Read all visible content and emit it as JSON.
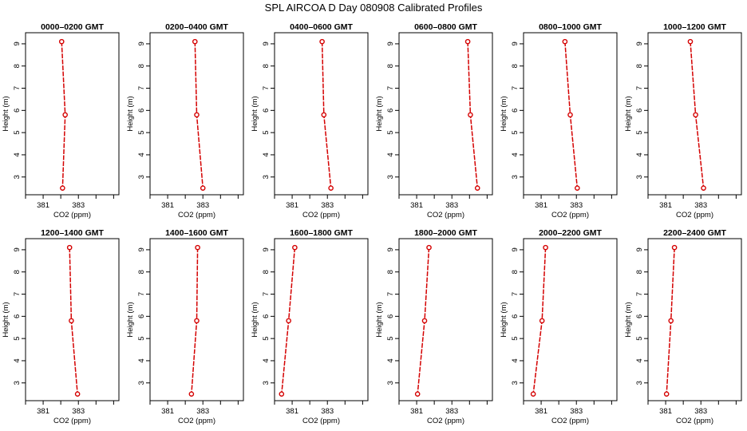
{
  "main_title": "SPL AIRCOA D  Day 080908  Calibrated Profiles",
  "chart_data": [
    {
      "type": "line",
      "title": "0000–0200 GMT",
      "xlabel": "CO2 (ppm)",
      "ylabel": "Height (m)",
      "xticks": [
        "381",
        "383"
      ],
      "yticks": [
        "3",
        "4",
        "5",
        "6",
        "7",
        "8",
        "9"
      ],
      "xlim": [
        380.0,
        385.3
      ],
      "ylim": [
        2.2,
        9.5
      ],
      "series": [
        {
          "x": [
            382.05,
            382.25,
            382.1
          ],
          "y": [
            9.1,
            5.8,
            2.5
          ]
        }
      ],
      "color": "#d40000",
      "grid": false
    },
    {
      "type": "line",
      "title": "0200–0400 GMT",
      "xlabel": "CO2 (ppm)",
      "ylabel": "Height (m)",
      "xticks": [
        "381",
        "383"
      ],
      "yticks": [
        "3",
        "4",
        "5",
        "6",
        "7",
        "8",
        "9"
      ],
      "xlim": [
        380.0,
        385.3
      ],
      "ylim": [
        2.2,
        9.5
      ],
      "series": [
        {
          "x": [
            382.55,
            382.65,
            383.0
          ],
          "y": [
            9.1,
            5.8,
            2.5
          ]
        }
      ],
      "color": "#d40000",
      "grid": false
    },
    {
      "type": "line",
      "title": "0400–0600 GMT",
      "xlabel": "CO2 (ppm)",
      "ylabel": "Height (m)",
      "xticks": [
        "381",
        "383"
      ],
      "yticks": [
        "3",
        "4",
        "5",
        "6",
        "7",
        "8",
        "9"
      ],
      "xlim": [
        380.0,
        385.3
      ],
      "ylim": [
        2.2,
        9.5
      ],
      "series": [
        {
          "x": [
            382.7,
            382.8,
            383.2
          ],
          "y": [
            9.1,
            5.8,
            2.5
          ]
        }
      ],
      "color": "#d40000",
      "grid": false
    },
    {
      "type": "line",
      "title": "0600–0800 GMT",
      "xlabel": "CO2 (ppm)",
      "ylabel": "Height (m)",
      "xticks": [
        "381",
        "383"
      ],
      "yticks": [
        "3",
        "4",
        "5",
        "6",
        "7",
        "8",
        "9"
      ],
      "xlim": [
        380.0,
        385.3
      ],
      "ylim": [
        2.2,
        9.5
      ],
      "series": [
        {
          "x": [
            383.9,
            384.05,
            384.45
          ],
          "y": [
            9.1,
            5.8,
            2.5
          ]
        }
      ],
      "color": "#d40000",
      "grid": false
    },
    {
      "type": "line",
      "title": "0800–1000 GMT",
      "xlabel": "CO2 (ppm)",
      "ylabel": "Height (m)",
      "xticks": [
        "381",
        "383"
      ],
      "yticks": [
        "3",
        "4",
        "5",
        "6",
        "7",
        "8",
        "9"
      ],
      "xlim": [
        380.0,
        385.3
      ],
      "ylim": [
        2.2,
        9.5
      ],
      "series": [
        {
          "x": [
            382.35,
            382.65,
            383.05
          ],
          "y": [
            9.1,
            5.8,
            2.5
          ]
        }
      ],
      "color": "#d40000",
      "grid": false
    },
    {
      "type": "line",
      "title": "1000–1200 GMT",
      "xlabel": "CO2 (ppm)",
      "ylabel": "Height (m)",
      "xticks": [
        "381",
        "383"
      ],
      "yticks": [
        "3",
        "4",
        "5",
        "6",
        "7",
        "8",
        "9"
      ],
      "xlim": [
        380.0,
        385.3
      ],
      "ylim": [
        2.2,
        9.5
      ],
      "series": [
        {
          "x": [
            382.4,
            382.7,
            383.15
          ],
          "y": [
            9.1,
            5.8,
            2.5
          ]
        }
      ],
      "color": "#d40000",
      "grid": false
    },
    {
      "type": "line",
      "title": "1200–1400 GMT",
      "xlabel": "CO2 (ppm)",
      "ylabel": "Height (m)",
      "xticks": [
        "381",
        "383"
      ],
      "yticks": [
        "3",
        "4",
        "5",
        "6",
        "7",
        "8",
        "9"
      ],
      "xlim": [
        380.0,
        385.3
      ],
      "ylim": [
        2.2,
        9.5
      ],
      "series": [
        {
          "x": [
            382.5,
            382.6,
            382.95
          ],
          "y": [
            9.1,
            5.8,
            2.5
          ]
        }
      ],
      "color": "#d40000",
      "grid": false
    },
    {
      "type": "line",
      "title": "1400–1600 GMT",
      "xlabel": "CO2 (ppm)",
      "ylabel": "Height (m)",
      "xticks": [
        "381",
        "383"
      ],
      "yticks": [
        "3",
        "4",
        "5",
        "6",
        "7",
        "8",
        "9"
      ],
      "xlim": [
        380.0,
        385.3
      ],
      "ylim": [
        2.2,
        9.5
      ],
      "series": [
        {
          "x": [
            382.7,
            382.65,
            382.35
          ],
          "y": [
            9.1,
            5.8,
            2.5
          ]
        }
      ],
      "color": "#d40000",
      "grid": false
    },
    {
      "type": "line",
      "title": "1600–1800 GMT",
      "xlabel": "CO2 (ppm)",
      "ylabel": "Height (m)",
      "xticks": [
        "381",
        "383"
      ],
      "yticks": [
        "3",
        "4",
        "5",
        "6",
        "7",
        "8",
        "9"
      ],
      "xlim": [
        380.0,
        385.3
      ],
      "ylim": [
        2.2,
        9.5
      ],
      "series": [
        {
          "x": [
            381.15,
            380.8,
            380.4
          ],
          "y": [
            9.1,
            5.8,
            2.5
          ]
        }
      ],
      "color": "#d40000",
      "grid": false
    },
    {
      "type": "line",
      "title": "1800–2000 GMT",
      "xlabel": "CO2 (ppm)",
      "ylabel": "Height (m)",
      "xticks": [
        "381",
        "383"
      ],
      "yticks": [
        "3",
        "4",
        "5",
        "6",
        "7",
        "8",
        "9"
      ],
      "xlim": [
        380.0,
        385.3
      ],
      "ylim": [
        2.2,
        9.5
      ],
      "series": [
        {
          "x": [
            381.7,
            381.45,
            381.05
          ],
          "y": [
            9.1,
            5.8,
            2.5
          ]
        }
      ],
      "color": "#d40000",
      "grid": false
    },
    {
      "type": "line",
      "title": "2000–2200 GMT",
      "xlabel": "CO2 (ppm)",
      "ylabel": "Height (m)",
      "xticks": [
        "381",
        "383"
      ],
      "yticks": [
        "3",
        "4",
        "5",
        "6",
        "7",
        "8",
        "9"
      ],
      "xlim": [
        380.0,
        385.3
      ],
      "ylim": [
        2.2,
        9.5
      ],
      "series": [
        {
          "x": [
            381.25,
            381.05,
            380.55
          ],
          "y": [
            9.1,
            5.8,
            2.5
          ]
        }
      ],
      "color": "#d40000",
      "grid": false
    },
    {
      "type": "line",
      "title": "2200–2400 GMT",
      "xlabel": "CO2 (ppm)",
      "ylabel": "Height (m)",
      "xticks": [
        "381",
        "383"
      ],
      "yticks": [
        "3",
        "4",
        "5",
        "6",
        "7",
        "8",
        "9"
      ],
      "xlim": [
        380.0,
        385.3
      ],
      "ylim": [
        2.2,
        9.5
      ],
      "series": [
        {
          "x": [
            381.5,
            381.3,
            381.05
          ],
          "y": [
            9.1,
            5.8,
            2.5
          ]
        }
      ],
      "color": "#d40000",
      "grid": false
    }
  ]
}
